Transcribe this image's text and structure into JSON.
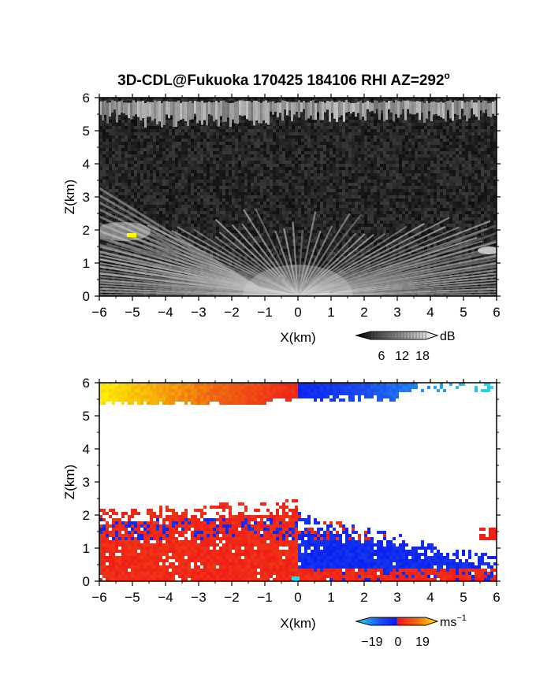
{
  "title_main": "3D-CDL@Fukuoka 170425 184106 RHI AZ=292",
  "title_degree": "o",
  "colors": {
    "background": "#ffffff",
    "panel1_bg": "#1c1c1c",
    "marker_yellow": "#ffff00",
    "velocity_negative": "#0a1cf0",
    "velocity_positive": "#f01818",
    "velocity_low_cyan": "#22e0f0"
  },
  "chart_data": [
    {
      "type": "heatmap",
      "variable": "backscatter intensity",
      "xlabel": "X(km)",
      "ylabel": "Z(km)",
      "xlim": [
        -6,
        6
      ],
      "ylim": [
        0,
        6
      ],
      "xticks": [
        "-6",
        "-5",
        "-4",
        "-3",
        "-2",
        "-1",
        "0",
        "1",
        "2",
        "3",
        "4",
        "5",
        "6"
      ],
      "yticks": [
        "0",
        "1",
        "2",
        "3",
        "4",
        "5",
        "6"
      ],
      "colorbar": {
        "unit": "dB",
        "ticks": [
          "6",
          "12",
          "18"
        ],
        "range": [
          0,
          20
        ],
        "colormap": "grayscale"
      },
      "features": [
        {
          "name": "upper cloud layer",
          "x_range": [
            -6,
            6
          ],
          "z_range": [
            5.4,
            6.0
          ]
        },
        {
          "name": "boundary layer fan",
          "x_range": [
            -6,
            6
          ],
          "z_range": [
            0,
            2.3
          ]
        }
      ]
    },
    {
      "type": "heatmap",
      "variable": "Doppler velocity",
      "xlabel": "X(km)",
      "ylabel": "Z(km)",
      "xlim": [
        -6,
        6
      ],
      "ylim": [
        0,
        6
      ],
      "xticks": [
        "-6",
        "-5",
        "-4",
        "-3",
        "-2",
        "-1",
        "0",
        "1",
        "2",
        "3",
        "4",
        "5",
        "6"
      ],
      "yticks": [
        "0",
        "1",
        "2",
        "3",
        "4",
        "5",
        "6"
      ],
      "colorbar": {
        "unit": "ms",
        "unit_exponent": "−1",
        "ticks": [
          "−19",
          "0",
          "19"
        ],
        "range": [
          -19,
          19
        ],
        "colormap": "cyan-blue-red-yellow"
      },
      "features": [
        {
          "name": "upper layer",
          "x_range": [
            -6,
            6
          ],
          "z_range": [
            5.5,
            6.0
          ],
          "velocity_sign": "mixed"
        },
        {
          "name": "lower layer negative x",
          "x_range": [
            -6,
            0
          ],
          "z_range": [
            0,
            2.5
          ],
          "velocity_sign": "positive"
        },
        {
          "name": "lower layer positive x",
          "x_range": [
            0,
            6
          ],
          "z_range": [
            0,
            2.0
          ],
          "velocity_sign": "negative"
        }
      ]
    }
  ]
}
